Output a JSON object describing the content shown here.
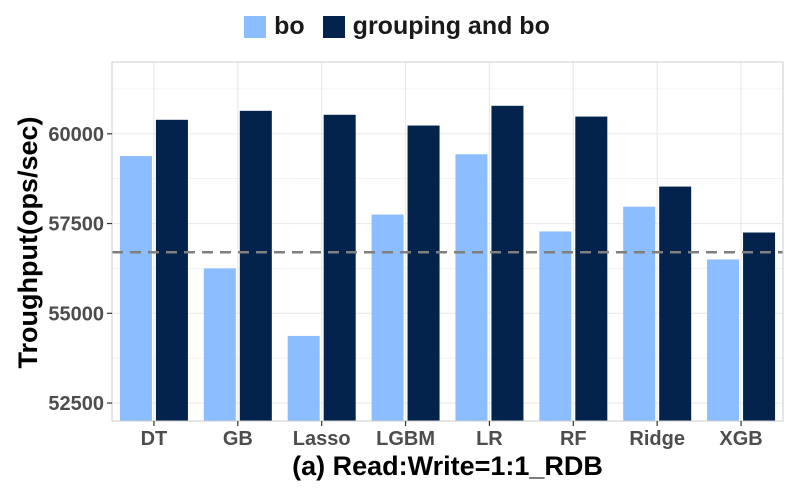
{
  "chart_data": {
    "type": "bar",
    "title": "",
    "xlabel": "(a) Read:Write=1:1_RDB",
    "ylabel": "Troughput(ops/sec)",
    "categories": [
      "DT",
      "GB",
      "Lasso",
      "LGBM",
      "LR",
      "RF",
      "Ridge",
      "XGB"
    ],
    "series": [
      {
        "name": "bo",
        "color": "#8bbdff",
        "values": [
          59380,
          56250,
          54370,
          57750,
          59430,
          57280,
          57970,
          56500
        ]
      },
      {
        "name": "grouping and bo",
        "color": "#03224c",
        "values": [
          60390,
          60640,
          60530,
          60230,
          60780,
          60480,
          58530,
          57250
        ]
      }
    ],
    "ylim": [
      52000,
      62000
    ],
    "yticks": [
      52500,
      55000,
      57500,
      60000
    ],
    "ytick_labels": [
      "52500",
      "55000",
      "57500",
      "60000"
    ],
    "reference_line": {
      "value": 56700,
      "style": "dashed",
      "color": "#7f7f7f"
    },
    "legend_position": "top",
    "grid": true
  }
}
